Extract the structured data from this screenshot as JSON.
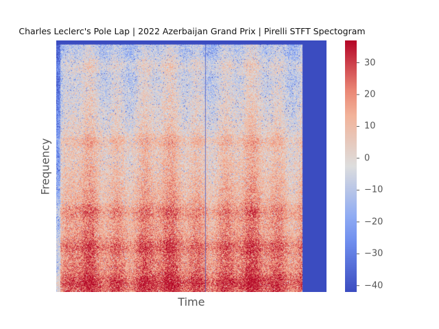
{
  "chart_data": {
    "type": "heatmap",
    "title": "Charles Leclerc's Pole Lap | 2022 Azerbaijan Grand Prix | Pirelli STFT Spectogram",
    "xlabel": "Time",
    "ylabel": "Frequency",
    "x_ticks": [],
    "y_ticks": [],
    "colormap": "coolwarm",
    "colorbar": {
      "range": [
        -42,
        37
      ],
      "ticks": [
        -40,
        -30,
        -20,
        -10,
        0,
        10,
        20,
        30
      ],
      "tick_labels": [
        "−40",
        "−30",
        "−20",
        "−10",
        "0",
        "10",
        "20",
        "30"
      ]
    },
    "time_range_with_signal": [
      0.0,
      0.91
    ],
    "description_of_bands": [
      {
        "frequency_fraction_from_bottom": 0.04,
        "level_db": 25
      },
      {
        "frequency_fraction_from_bottom": 0.18,
        "level_db": 18
      },
      {
        "frequency_fraction_from_bottom": 0.32,
        "level_db": 16
      },
      {
        "frequency_fraction_from_bottom": 0.6,
        "level_db": 5
      },
      {
        "frequency_fraction_from_bottom": 0.9,
        "level_db": -5
      }
    ],
    "grid": false,
    "colors": {
      "cold": "#3b4cc0",
      "neutral": "#dddddd",
      "hot": "#b40426"
    }
  }
}
